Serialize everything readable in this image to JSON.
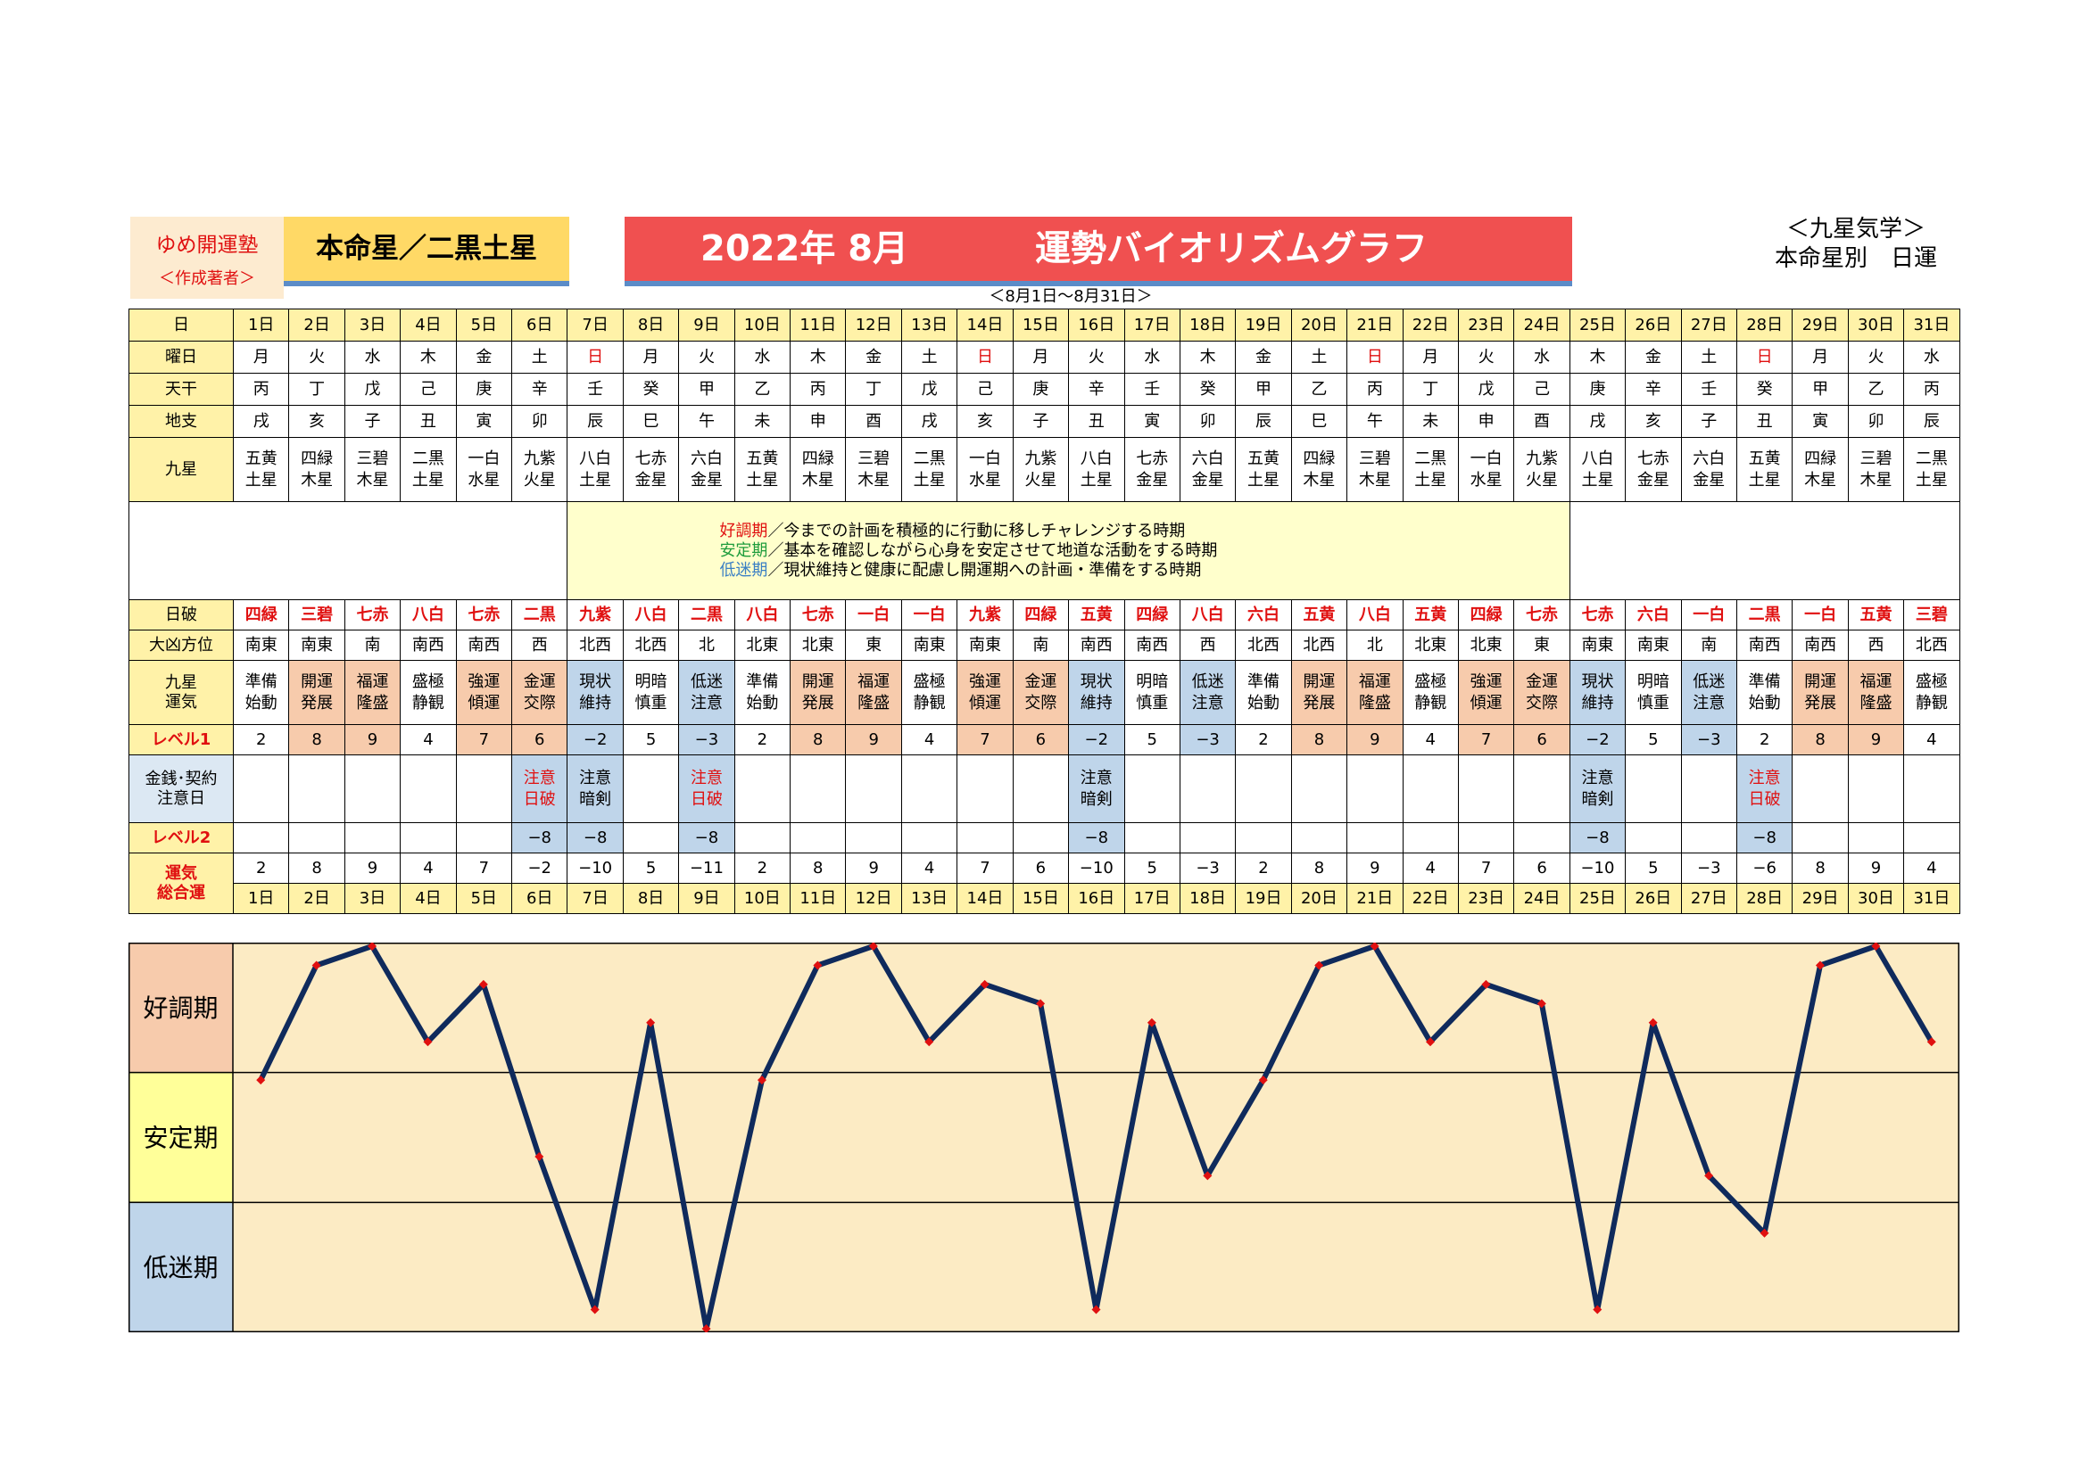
{
  "header": {
    "org_name": "ゆめ開運塾",
    "org_sub": "＜作成著者＞",
    "star_title": "本命星／二黒土星",
    "title_main": "2022年 8月",
    "title_sub": "運勢バイオリズムグラフ",
    "kyusei_line1": "＜九星気学＞",
    "kyusei_line2": "本命星別　日運",
    "date_range": "＜8月1日～8月31日＞"
  },
  "row_labels": {
    "day": "日",
    "weekday": "曜日",
    "tenkan": "天干",
    "chishi": "地支",
    "kyusei": "九星",
    "nippa": "日破",
    "daikyo": "大凶方位",
    "unki": "九星\n運気",
    "level1": "レベル1",
    "money": "金銭･契約\n注意日",
    "level2": "レベル2",
    "sogo": "運気\n総合運"
  },
  "legend": [
    {
      "term": "好調期",
      "text": "／今までの計画を積極的に行動に移しチャレンジする時期",
      "color": "#e01010"
    },
    {
      "term": "安定期",
      "text": "／基本を確認しながら心身を安定させて地道な活動をする時期",
      "color": "#1e9c3c"
    },
    {
      "term": "低迷期",
      "text": "／現状維持と健康に配慮し開運期への計画・準備をする時期",
      "color": "#3a7fc4"
    }
  ],
  "colors": {
    "good": "#f7cbac",
    "stable": "#ffff99",
    "low": "#bfd5ea",
    "line": "#0f2a5c",
    "marker": "#e01010"
  },
  "days": [
    "1日",
    "2日",
    "3日",
    "4日",
    "5日",
    "6日",
    "7日",
    "8日",
    "9日",
    "10日",
    "11日",
    "12日",
    "13日",
    "14日",
    "15日",
    "16日",
    "17日",
    "18日",
    "19日",
    "20日",
    "21日",
    "22日",
    "23日",
    "24日",
    "25日",
    "26日",
    "27日",
    "28日",
    "29日",
    "30日",
    "31日"
  ],
  "weekdays": [
    "月",
    "火",
    "水",
    "木",
    "金",
    "土",
    "日",
    "月",
    "火",
    "水",
    "木",
    "金",
    "土",
    "日",
    "月",
    "火",
    "水",
    "木",
    "金",
    "土",
    "日",
    "月",
    "火",
    "水",
    "木",
    "金",
    "土",
    "日",
    "月",
    "火",
    "水"
  ],
  "tenkan": [
    "丙",
    "丁",
    "戊",
    "己",
    "庚",
    "辛",
    "壬",
    "癸",
    "甲",
    "乙",
    "丙",
    "丁",
    "戊",
    "己",
    "庚",
    "辛",
    "壬",
    "癸",
    "甲",
    "乙",
    "丙",
    "丁",
    "戊",
    "己",
    "庚",
    "辛",
    "壬",
    "癸",
    "甲",
    "乙",
    "丙"
  ],
  "chishi": [
    "戌",
    "亥",
    "子",
    "丑",
    "寅",
    "卯",
    "辰",
    "巳",
    "午",
    "未",
    "申",
    "酉",
    "戌",
    "亥",
    "子",
    "丑",
    "寅",
    "卯",
    "辰",
    "巳",
    "午",
    "未",
    "申",
    "酉",
    "戌",
    "亥",
    "子",
    "丑",
    "寅",
    "卯",
    "辰"
  ],
  "kyusei": [
    [
      "五黄",
      "土星"
    ],
    [
      "四緑",
      "木星"
    ],
    [
      "三碧",
      "木星"
    ],
    [
      "二黒",
      "土星"
    ],
    [
      "一白",
      "水星"
    ],
    [
      "九紫",
      "火星"
    ],
    [
      "八白",
      "土星"
    ],
    [
      "七赤",
      "金星"
    ],
    [
      "六白",
      "金星"
    ],
    [
      "五黄",
      "土星"
    ],
    [
      "四緑",
      "木星"
    ],
    [
      "三碧",
      "木星"
    ],
    [
      "二黒",
      "土星"
    ],
    [
      "一白",
      "水星"
    ],
    [
      "九紫",
      "火星"
    ],
    [
      "八白",
      "土星"
    ],
    [
      "七赤",
      "金星"
    ],
    [
      "六白",
      "金星"
    ],
    [
      "五黄",
      "土星"
    ],
    [
      "四緑",
      "木星"
    ],
    [
      "三碧",
      "木星"
    ],
    [
      "二黒",
      "土星"
    ],
    [
      "一白",
      "水星"
    ],
    [
      "九紫",
      "火星"
    ],
    [
      "八白",
      "土星"
    ],
    [
      "七赤",
      "金星"
    ],
    [
      "六白",
      "金星"
    ],
    [
      "五黄",
      "土星"
    ],
    [
      "四緑",
      "木星"
    ],
    [
      "三碧",
      "木星"
    ],
    [
      "二黒",
      "土星"
    ]
  ],
  "nippa": [
    "四緑",
    "三碧",
    "七赤",
    "八白",
    "七赤",
    "二黒",
    "九紫",
    "八白",
    "二黒",
    "八白",
    "七赤",
    "一白",
    "一白",
    "九紫",
    "四緑",
    "五黄",
    "四緑",
    "八白",
    "六白",
    "五黄",
    "八白",
    "五黄",
    "四緑",
    "七赤",
    "七赤",
    "六白",
    "一白",
    "二黒",
    "一白",
    "五黄",
    "三碧"
  ],
  "daikyo": [
    "南東",
    "南東",
    "南",
    "南西",
    "南西",
    "西",
    "北西",
    "北西",
    "北",
    "北東",
    "北東",
    "東",
    "南東",
    "南東",
    "南",
    "南西",
    "南西",
    "西",
    "北西",
    "北西",
    "北",
    "北東",
    "北東",
    "東",
    "南東",
    "南東",
    "南",
    "南西",
    "南西",
    "西",
    "北西"
  ],
  "unki": [
    [
      "準備",
      "始動"
    ],
    [
      "開運",
      "発展"
    ],
    [
      "福運",
      "隆盛"
    ],
    [
      "盛極",
      "静観"
    ],
    [
      "強運",
      "傾運"
    ],
    [
      "金運",
      "交際"
    ],
    [
      "現状",
      "維持"
    ],
    [
      "明暗",
      "慎重"
    ],
    [
      "低迷",
      "注意"
    ],
    [
      "準備",
      "始動"
    ],
    [
      "開運",
      "発展"
    ],
    [
      "福運",
      "隆盛"
    ],
    [
      "盛極",
      "静観"
    ],
    [
      "強運",
      "傾運"
    ],
    [
      "金運",
      "交際"
    ],
    [
      "現状",
      "維持"
    ],
    [
      "明暗",
      "慎重"
    ],
    [
      "低迷",
      "注意"
    ],
    [
      "準備",
      "始動"
    ],
    [
      "開運",
      "発展"
    ],
    [
      "福運",
      "隆盛"
    ],
    [
      "盛極",
      "静観"
    ],
    [
      "強運",
      "傾運"
    ],
    [
      "金運",
      "交際"
    ],
    [
      "現状",
      "維持"
    ],
    [
      "明暗",
      "慎重"
    ],
    [
      "低迷",
      "注意"
    ],
    [
      "準備",
      "始動"
    ],
    [
      "開運",
      "発展"
    ],
    [
      "福運",
      "隆盛"
    ],
    [
      "盛極",
      "静観"
    ]
  ],
  "level1": [
    "2",
    "8",
    "9",
    "4",
    "7",
    "6",
    "−2",
    "5",
    "−3",
    "2",
    "8",
    "9",
    "4",
    "7",
    "6",
    "−2",
    "5",
    "−3",
    "2",
    "8",
    "9",
    "4",
    "7",
    "6",
    "−2",
    "5",
    "−3",
    "2",
    "8",
    "9",
    "4"
  ],
  "money": [
    [
      "",
      ""
    ],
    [
      "",
      ""
    ],
    [
      "",
      ""
    ],
    [
      "",
      ""
    ],
    [
      "",
      ""
    ],
    [
      "注意",
      "日破"
    ],
    [
      "注意",
      "暗剣"
    ],
    [
      "",
      ""
    ],
    [
      "注意",
      "日破"
    ],
    [
      "",
      ""
    ],
    [
      "",
      ""
    ],
    [
      "",
      ""
    ],
    [
      "",
      ""
    ],
    [
      "",
      ""
    ],
    [
      "",
      ""
    ],
    [
      "注意",
      "暗剣"
    ],
    [
      "",
      ""
    ],
    [
      "",
      ""
    ],
    [
      "",
      ""
    ],
    [
      "",
      ""
    ],
    [
      "",
      ""
    ],
    [
      "",
      ""
    ],
    [
      "",
      ""
    ],
    [
      "",
      ""
    ],
    [
      "注意",
      "暗剣"
    ],
    [
      "",
      ""
    ],
    [
      "",
      ""
    ],
    [
      "注意",
      "日破"
    ],
    [
      "",
      ""
    ],
    [
      "",
      ""
    ],
    [
      "",
      ""
    ]
  ],
  "level2": [
    "",
    "",
    "",
    "",
    "",
    "−8",
    "−8",
    "",
    "−8",
    "",
    "",
    "",
    "",
    "",
    "",
    "−8",
    "",
    "",
    "",
    "",
    "",
    "",
    "",
    "",
    "−8",
    "",
    "",
    "−8",
    "",
    "",
    ""
  ],
  "sogo": [
    "2",
    "8",
    "9",
    "4",
    "7",
    "−2",
    "−10",
    "5",
    "−11",
    "2",
    "8",
    "9",
    "4",
    "7",
    "6",
    "−10",
    "5",
    "−3",
    "2",
    "8",
    "9",
    "4",
    "7",
    "6",
    "−10",
    "5",
    "−3",
    "−6",
    "8",
    "9",
    "4"
  ],
  "chart_labels": {
    "good": "好調期",
    "stable": "安定期",
    "low": "低迷期"
  },
  "chart_data": {
    "type": "line",
    "categories": [
      "1日",
      "2日",
      "3日",
      "4日",
      "5日",
      "6日",
      "7日",
      "8日",
      "9日",
      "10日",
      "11日",
      "12日",
      "13日",
      "14日",
      "15日",
      "16日",
      "17日",
      "18日",
      "19日",
      "20日",
      "21日",
      "22日",
      "23日",
      "24日",
      "25日",
      "26日",
      "27日",
      "28日",
      "29日",
      "30日",
      "31日"
    ],
    "series": [
      {
        "values": [
          2,
          8,
          9,
          4,
          7,
          -2,
          -10,
          5,
          -11,
          2,
          8,
          9,
          4,
          7,
          6,
          -10,
          5,
          -3,
          2,
          8,
          9,
          4,
          7,
          6,
          -10,
          5,
          -3,
          -6,
          8,
          9,
          4
        ]
      }
    ],
    "ylim": [
      -11,
      9
    ],
    "bands": [
      "好調期",
      "安定期",
      "低迷期"
    ],
    "grid": false
  }
}
